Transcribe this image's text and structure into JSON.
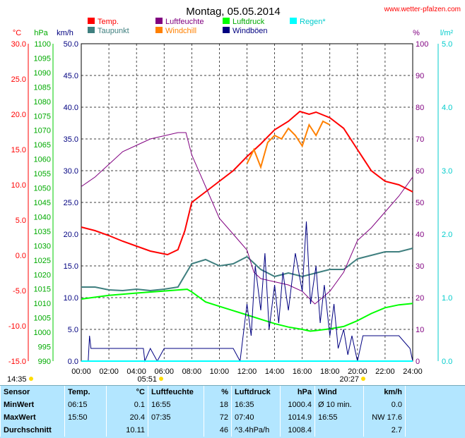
{
  "title": "Montag, 05.05.2014",
  "website": "www.wetter-pfalzen.com",
  "colors": {
    "temp": "#ff0000",
    "taupunkt": "#3f7f7f",
    "luftfeuchte": "#800080",
    "windchill": "#ff8000",
    "luftdruck": "#00ff00",
    "windboeen": "#000080",
    "regen": "#00ffff",
    "grid": "#000000",
    "background": "#ffffff",
    "table_bg": "#b3e6ff"
  },
  "legend": [
    {
      "label": "Temp.",
      "color": "#ff0000"
    },
    {
      "label": "Luftfeuchte",
      "color": "#800080"
    },
    {
      "label": "Luftdruck",
      "color": "#00ff00"
    },
    {
      "label": "Regen*",
      "color": "#00ffff"
    },
    {
      "label": "Taupunkt",
      "color": "#3f7f7f"
    },
    {
      "label": "Windchill",
      "color": "#ff8000"
    },
    {
      "label": "Windböen",
      "color": "#000080"
    }
  ],
  "sun": {
    "sunrise": "05:51",
    "sunset": "20:27"
  },
  "chart_data": {
    "type": "line",
    "x_label_start": "14:35",
    "x_ticks": [
      "00:00",
      "02:00",
      "04:00",
      "06:00",
      "08:00",
      "10:00",
      "12:00",
      "14:00",
      "16:00",
      "18:00",
      "20:00",
      "22:00",
      "24:00"
    ],
    "xlim": [
      0,
      24
    ],
    "grid": true,
    "axes": {
      "temp": {
        "unit": "°C",
        "range": [
          -15,
          30
        ],
        "ticks": [
          "30.0",
          "25.0",
          "20.0",
          "15.0",
          "10.0",
          "5.0",
          "0.0",
          "-5.0",
          "-10.0",
          "-15.0"
        ]
      },
      "pressure": {
        "unit": "hPa",
        "range": [
          990,
          1100
        ],
        "ticks": [
          "1100",
          "1095",
          "1090",
          "1085",
          "1080",
          "1075",
          "1070",
          "1065",
          "1060",
          "1055",
          "1050",
          "1045",
          "1040",
          "1035",
          "1030",
          "1025",
          "1020",
          "1015",
          "1010",
          "1005",
          "1000",
          "995",
          "990"
        ]
      },
      "wind": {
        "unit": "km/h",
        "range": [
          0,
          50
        ],
        "ticks": [
          "50.0",
          "45.0",
          "40.0",
          "35.0",
          "30.0",
          "25.0",
          "20.0",
          "15.0",
          "10.0",
          "5.0",
          "0.0"
        ]
      },
      "humidity": {
        "unit": "%",
        "range": [
          0,
          100
        ],
        "ticks": [
          "100",
          "90",
          "80",
          "70",
          "60",
          "50",
          "40",
          "30",
          "20",
          "10",
          "0"
        ]
      },
      "rain": {
        "unit": "l/m²",
        "range": [
          0,
          5
        ],
        "ticks": [
          "5.0",
          "4.0",
          "3.0",
          "2.0",
          "1.0",
          "0.0"
        ]
      }
    },
    "series": [
      {
        "name": "Temp.",
        "axis": "temp",
        "color": "#ff0000",
        "points": [
          [
            0,
            4.0
          ],
          [
            1,
            3.5
          ],
          [
            2,
            2.8
          ],
          [
            3,
            2.0
          ],
          [
            4,
            1.3
          ],
          [
            5,
            0.6
          ],
          [
            6,
            0.2
          ],
          [
            6.25,
            0.1
          ],
          [
            7,
            0.8
          ],
          [
            7.5,
            3.5
          ],
          [
            8,
            7.5
          ],
          [
            9,
            9.0
          ],
          [
            10,
            10.5
          ],
          [
            11,
            12.0
          ],
          [
            12,
            14.0
          ],
          [
            13,
            15.8
          ],
          [
            14,
            17.8
          ],
          [
            15,
            19.0
          ],
          [
            15.83,
            20.4
          ],
          [
            16.5,
            20.0
          ],
          [
            17,
            20.3
          ],
          [
            18,
            19.5
          ],
          [
            19,
            18.0
          ],
          [
            20,
            15.0
          ],
          [
            21,
            12.0
          ],
          [
            22,
            10.5
          ],
          [
            23,
            10.0
          ],
          [
            24,
            9.0
          ]
        ]
      },
      {
        "name": "Taupunkt",
        "axis": "temp",
        "color": "#3f7f7f",
        "points": [
          [
            0,
            -4.5
          ],
          [
            1,
            -4.5
          ],
          [
            2,
            -4.9
          ],
          [
            3,
            -5.0
          ],
          [
            4,
            -4.8
          ],
          [
            5,
            -5.0
          ],
          [
            6,
            -4.8
          ],
          [
            7,
            -4.5
          ],
          [
            8,
            -1.2
          ],
          [
            9,
            -0.6
          ],
          [
            10,
            -1.5
          ],
          [
            11,
            -1.2
          ],
          [
            12,
            -0.2
          ],
          [
            13,
            -2.0
          ],
          [
            14,
            -3.0
          ],
          [
            15,
            -2.5
          ],
          [
            16,
            -3.0
          ],
          [
            17,
            -2.5
          ],
          [
            18,
            -2.0
          ],
          [
            19,
            -2.0
          ],
          [
            20,
            -0.5
          ],
          [
            21,
            0.0
          ],
          [
            22,
            0.5
          ],
          [
            23,
            0.5
          ],
          [
            24,
            1.0
          ]
        ]
      },
      {
        "name": "Windchill",
        "axis": "temp",
        "color": "#ff8000",
        "points": [
          [
            12,
            13.0
          ],
          [
            12.5,
            15.0
          ],
          [
            13,
            12.5
          ],
          [
            13.5,
            16.0
          ],
          [
            14,
            17.0
          ],
          [
            14.5,
            16.5
          ],
          [
            15,
            18.0
          ],
          [
            15.5,
            17.0
          ],
          [
            16,
            15.5
          ],
          [
            16.5,
            18.5
          ],
          [
            17,
            17.0
          ],
          [
            17.5,
            19.0
          ],
          [
            18,
            18.5
          ]
        ]
      },
      {
        "name": "Luftfeuchte",
        "axis": "humidity",
        "color": "#800080",
        "points": [
          [
            0,
            55
          ],
          [
            1,
            58
          ],
          [
            2,
            62
          ],
          [
            3,
            66
          ],
          [
            4,
            68
          ],
          [
            5,
            70
          ],
          [
            6,
            71
          ],
          [
            7,
            72
          ],
          [
            7.58,
            72
          ],
          [
            8,
            65
          ],
          [
            9,
            55
          ],
          [
            10,
            45
          ],
          [
            11,
            40
          ],
          [
            12,
            35
          ],
          [
            12.5,
            28
          ],
          [
            13,
            26
          ],
          [
            14,
            25
          ],
          [
            15,
            24
          ],
          [
            16,
            22
          ],
          [
            16.92,
            18
          ],
          [
            18,
            22
          ],
          [
            19,
            28
          ],
          [
            20,
            38
          ],
          [
            21,
            42
          ],
          [
            22,
            47
          ],
          [
            23,
            52
          ],
          [
            24,
            58
          ]
        ]
      },
      {
        "name": "Luftdruck",
        "axis": "pressure",
        "color": "#00ff00",
        "points": [
          [
            0,
            1011.5
          ],
          [
            2,
            1012.8
          ],
          [
            4,
            1013.6
          ],
          [
            6,
            1014.3
          ],
          [
            7.67,
            1014.9
          ],
          [
            8,
            1014.0
          ],
          [
            9,
            1010.5
          ],
          [
            10,
            1009.0
          ],
          [
            11,
            1007.5
          ],
          [
            12,
            1006.0
          ],
          [
            13,
            1004.5
          ],
          [
            14,
            1003.0
          ],
          [
            15,
            1001.8
          ],
          [
            16,
            1001.0
          ],
          [
            16.58,
            1000.4
          ],
          [
            17,
            1000.6
          ],
          [
            18,
            1001.2
          ],
          [
            19,
            1002.0
          ],
          [
            20,
            1004.0
          ],
          [
            21,
            1006.5
          ],
          [
            22,
            1008.5
          ],
          [
            23,
            1009.5
          ],
          [
            24,
            1010.0
          ]
        ]
      },
      {
        "name": "Windböen",
        "axis": "wind",
        "color": "#000080",
        "points": [
          [
            0,
            0
          ],
          [
            0.5,
            0
          ],
          [
            0.6,
            4
          ],
          [
            0.7,
            2
          ],
          [
            1,
            2
          ],
          [
            3,
            2
          ],
          [
            4.5,
            2
          ],
          [
            4.6,
            0
          ],
          [
            5,
            2
          ],
          [
            5.5,
            0
          ],
          [
            6,
            2
          ],
          [
            7,
            2
          ],
          [
            8,
            2
          ],
          [
            10,
            2
          ],
          [
            11,
            2
          ],
          [
            11.5,
            0
          ],
          [
            12,
            9
          ],
          [
            12.3,
            4
          ],
          [
            12.6,
            15
          ],
          [
            13,
            8
          ],
          [
            13.3,
            17
          ],
          [
            13.6,
            5
          ],
          [
            14,
            12
          ],
          [
            14.3,
            6
          ],
          [
            14.6,
            14
          ],
          [
            15,
            8
          ],
          [
            15.5,
            17
          ],
          [
            16,
            11
          ],
          [
            16.3,
            22
          ],
          [
            16.6,
            9
          ],
          [
            17,
            15
          ],
          [
            17.3,
            6
          ],
          [
            17.6,
            12
          ],
          [
            18,
            4
          ],
          [
            18.3,
            9
          ],
          [
            18.6,
            2
          ],
          [
            19,
            5
          ],
          [
            19.3,
            1
          ],
          [
            19.6,
            4
          ],
          [
            20,
            0
          ],
          [
            20.4,
            4
          ],
          [
            21,
            4
          ],
          [
            22,
            4
          ],
          [
            23,
            4
          ],
          [
            23.8,
            2
          ],
          [
            24,
            0
          ]
        ]
      },
      {
        "name": "Regen*",
        "axis": "rain",
        "color": "#00ffff",
        "points": [
          [
            0,
            0
          ],
          [
            24,
            0
          ]
        ]
      }
    ]
  },
  "stats": {
    "headers": [
      "Sensor",
      "Temp.",
      "°C",
      "Luftfeuchte",
      "%",
      "Luftdruck",
      "hPa",
      "Wind",
      "km/h"
    ],
    "rows": [
      {
        "label": "MinWert",
        "t_time": "06:15",
        "t_val": "0.1",
        "h_time": "16:55",
        "h_val": "18",
        "p_time": "16:35",
        "p_val": "1000.4",
        "w_time": "Ø 10 min.",
        "w_val": "0.0"
      },
      {
        "label": "MaxWert",
        "t_time": "15:50",
        "t_val": "20.4",
        "h_time": "07:35",
        "h_val": "72",
        "p_time": "07:40",
        "p_val": "1014.9",
        "w_time": "16:55",
        "w_val": "NW 17.6"
      },
      {
        "label": "Durchschnitt",
        "t_time": "",
        "t_val": "10.11",
        "h_time": "",
        "h_val": "46",
        "p_time": "^3.4hPa/h",
        "p_val": "1008.4",
        "w_time": "",
        "w_val": "2.7"
      }
    ]
  }
}
